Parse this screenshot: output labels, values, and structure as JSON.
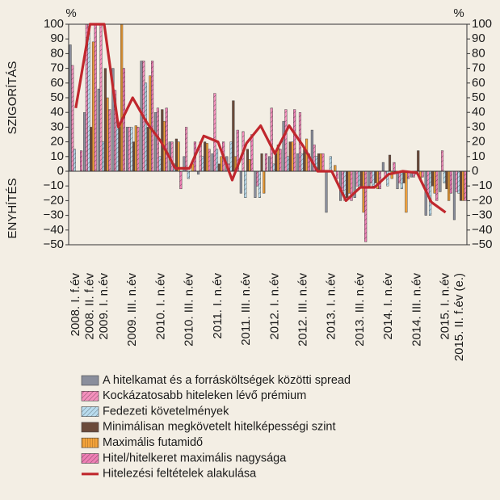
{
  "chart_data": {
    "type": "bar",
    "y_unit": "%",
    "y_label_top": "SZIGORÍTÁS",
    "y_label_bottom": "ENYHÍTÉS",
    "categories": [
      "2008. I. f.év",
      "2008. II. f.év",
      "2009. I. n.év",
      null,
      "2009. III. n.év",
      null,
      "2010. I. n.év",
      null,
      "2010. III. n.év",
      null,
      "2011. I. n.év",
      null,
      "2011. III. n.év",
      null,
      "2012. I. n.év",
      null,
      "2012. III. n.év",
      null,
      "2013. I. n.év",
      null,
      "2013. III. n.év",
      null,
      "2014. I. n.év",
      null,
      "2014. III. n.év",
      null,
      "2015. I. n.év",
      "2015. II. f.év (e.)"
    ],
    "series": [
      {
        "name": "A hitelkamat és a forrásköltségek közötti spread",
        "color": "#8a8e9c",
        "pattern": "solid",
        "values": [
          86,
          40,
          56,
          70,
          30,
          75,
          40,
          20,
          10,
          -2,
          12,
          10,
          -15,
          -18,
          10,
          34,
          12,
          28,
          -28,
          -20,
          -18,
          -10,
          6,
          -12,
          -4,
          -30,
          -14,
          -33
        ]
      },
      {
        "name": "Kockázatosabb hiteleken lévő prémium",
        "color": "#f490bd",
        "pattern": "hatch",
        "values": [
          72,
          100,
          100,
          55,
          30,
          75,
          43,
          20,
          30,
          20,
          53,
          5,
          27,
          -10,
          43,
          42,
          40,
          18,
          0,
          -13,
          -10,
          -8,
          -4,
          -8,
          -4,
          -15,
          14,
          -14
        ]
      },
      {
        "name": "Fedezeti követelmények",
        "color": "#b9dcee",
        "pattern": "hatch",
        "values": [
          15,
          100,
          20,
          35,
          30,
          60,
          10,
          5,
          -5,
          10,
          15,
          20,
          -18,
          -18,
          5,
          10,
          12,
          10,
          10,
          -20,
          -12,
          -10,
          -10,
          -12,
          -2,
          -30,
          -8,
          -15
        ]
      },
      {
        "name": "Minimálisan megkövetelt hitelképességi szint",
        "color": "#6b4a3a",
        "pattern": "solid",
        "values": [
          0,
          30,
          70,
          30,
          20,
          30,
          42,
          22,
          0,
          20,
          5,
          48,
          15,
          12,
          12,
          20,
          15,
          12,
          0,
          -18,
          -10,
          -8,
          11,
          -8,
          14,
          -10,
          -12,
          -20
        ]
      },
      {
        "name": "Maximális futamidő",
        "color": "#f4a33a",
        "pattern": "stripe",
        "values": [
          0,
          88,
          50,
          100,
          31,
          65,
          34,
          20,
          5,
          19,
          10,
          10,
          8,
          -15,
          18,
          20,
          22,
          12,
          4,
          -15,
          -28,
          -12,
          -5,
          -28,
          -5,
          -15,
          -20,
          -20
        ]
      },
      {
        "name": "Hitel/hitelkeret maximális nagysága",
        "color": "#ee7fb5",
        "pattern": "hatch",
        "values": [
          14,
          100,
          42,
          70,
          30,
          75,
          43,
          -12,
          20,
          15,
          20,
          28,
          25,
          12,
          15,
          42,
          12,
          12,
          -5,
          -20,
          -48,
          -12,
          6,
          -5,
          -4,
          -20,
          -15,
          -20
        ]
      }
    ],
    "line": {
      "name": "Hitelezési feltételek alakulása",
      "color": "#c0272d",
      "values": [
        43,
        100,
        100,
        30,
        50,
        33,
        20,
        2,
        2,
        24,
        20,
        -6,
        19,
        31,
        12,
        31,
        17,
        0,
        0,
        -20,
        -11,
        -11,
        -2,
        0,
        -1,
        -21,
        -28,
        null
      ]
    },
    "ylim": [
      -50,
      100
    ],
    "yticks": [
      {
        "value": -50,
        "label": "−50"
      },
      {
        "value": -40,
        "label": "−40"
      },
      {
        "value": -30,
        "label": "−30"
      },
      {
        "value": -20,
        "label": "−20"
      },
      {
        "value": -10,
        "label": "−10"
      },
      0,
      10,
      20,
      30,
      40,
      50,
      60,
      70,
      80,
      90,
      100
    ],
    "y2lim": [
      -50,
      100
    ],
    "y2ticks": [
      {
        "value": -50,
        "label": "−50"
      },
      {
        "value": -40,
        "label": "−40"
      },
      {
        "value": -30,
        "label": "−30"
      },
      {
        "value": -20,
        "label": "−20"
      },
      {
        "value": -10,
        "label": "−10"
      },
      0,
      10,
      20,
      30,
      40,
      50,
      60,
      70,
      80,
      90,
      100
    ]
  }
}
